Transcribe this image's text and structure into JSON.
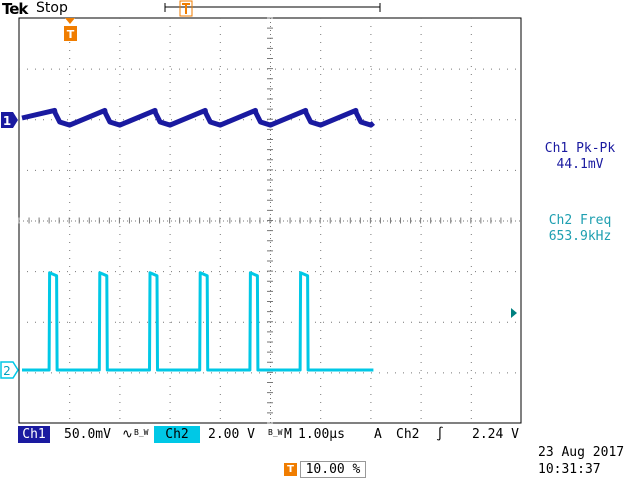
{
  "header": {
    "brand_tek": "Tek",
    "acq_state": "Stop"
  },
  "trigger_marker": "T",
  "channels": {
    "ch1": {
      "marker": "1",
      "color": "#1a1aa0"
    },
    "ch2": {
      "marker": "2",
      "color": "#00c8e6"
    }
  },
  "measurements": {
    "m1": {
      "label": "Ch1 Pk-Pk",
      "value": "44.1mV"
    },
    "m2": {
      "label": "Ch2 Freq",
      "value": "653.9kHz"
    }
  },
  "status_bar": {
    "ch1_label": "Ch1",
    "ch1_scale": "50.0mV",
    "ch1_coupling": "∿",
    "ch1_bw": "B_W",
    "ch2_label": "Ch2",
    "ch2_scale": "2.00 V",
    "ch2_bw": "B_W",
    "timebase_label": "M",
    "timebase": "1.00µs",
    "trig_mode": "A",
    "trig_source": "Ch2",
    "trig_slope": "∫",
    "trig_level": "2.24 V"
  },
  "datetime": {
    "date": "23 Aug 2017",
    "time": "10:31:37"
  },
  "trigger_position": {
    "icon": "T",
    "value": "10.00 %"
  },
  "chart_data": {
    "type": "line",
    "xlabel": "",
    "ylabel": "",
    "grid": true,
    "series": [
      {
        "name": "Ch1",
        "color": "#1a1aa0",
        "x": [
          0,
          0.65,
          0.66,
          0.75,
          0.95,
          1.65,
          1.66,
          1.75,
          1.95,
          2.65,
          2.66,
          2.75,
          2.95,
          3.65,
          3.66,
          3.75,
          3.95,
          4.65,
          4.66,
          4.75,
          4.95,
          5.65,
          5.66,
          5.75,
          5.95,
          6.65,
          6.66,
          6.75,
          6.95,
          7.0
        ],
        "y": [
          0.2,
          0.95,
          0.7,
          -0.2,
          -0.5,
          0.95,
          0.7,
          -0.2,
          -0.5,
          0.95,
          0.7,
          -0.2,
          -0.5,
          0.95,
          0.7,
          -0.2,
          -0.5,
          0.95,
          0.7,
          -0.2,
          -0.5,
          0.95,
          0.7,
          -0.2,
          -0.5,
          0.95,
          0.7,
          -0.2,
          -0.5,
          -0.3
        ]
      },
      {
        "name": "Ch2",
        "color": "#00c8e6",
        "x": [
          0,
          0.54,
          0.55,
          0.69,
          0.7,
          1.54,
          1.55,
          1.69,
          1.7,
          2.54,
          2.55,
          2.69,
          2.7,
          3.54,
          3.55,
          3.69,
          3.7,
          4.54,
          4.55,
          4.69,
          4.7,
          5.54,
          5.55,
          5.69,
          5.7,
          7.0
        ],
        "y": [
          0,
          0,
          6.4,
          6.2,
          0,
          0,
          6.4,
          6.2,
          0,
          0,
          6.4,
          6.2,
          0,
          0,
          6.4,
          6.2,
          0,
          0,
          6.4,
          6.2,
          0,
          0,
          6.4,
          6.2,
          0,
          0
        ]
      }
    ]
  }
}
